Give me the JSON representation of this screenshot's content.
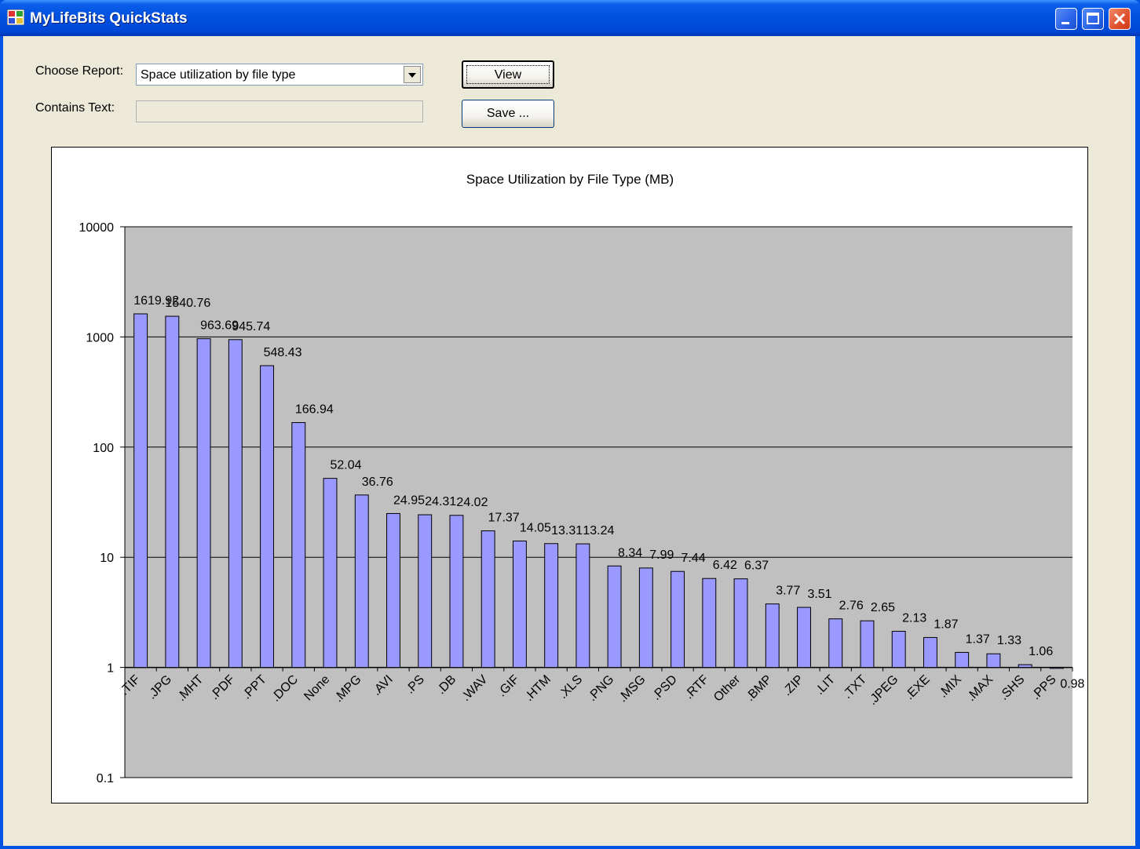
{
  "window": {
    "title": "MyLifeBits QuickStats"
  },
  "form": {
    "choose_report_label": "Choose Report:",
    "report_value": "Space utilization by file type",
    "contains_text_label": "Contains Text:",
    "contains_text_value": "",
    "view_label": "View",
    "save_label": "Save ..."
  },
  "colors": {
    "bar": "#9999ff",
    "plot_bg": "#c0c0c0",
    "titlebar": "#0050e0"
  },
  "chart_data": {
    "type": "bar",
    "title": "Space Utilization by File Type (MB)",
    "xlabel": "",
    "ylabel": "",
    "yscale": "log",
    "ylim": [
      0.1,
      10000
    ],
    "yticks": [
      "0.1",
      "1",
      "10",
      "100",
      "1000",
      "10000"
    ],
    "grid": true,
    "categories": [
      ".TIF",
      ".JPG",
      ".MHT",
      ".PDF",
      ".PPT",
      ".DOC",
      "None",
      ".MPG",
      ".AVI",
      ".PS",
      ".DB",
      ".WAV",
      ".GIF",
      ".HTM",
      ".XLS",
      ".PNG",
      ".MSG",
      ".PSD",
      ".RTF",
      "Other",
      ".BMP",
      ".ZIP",
      ".LIT",
      ".TXT",
      ".JPEG",
      ".EXE",
      ".MIX",
      ".MAX",
      ".SHS",
      ".PPS"
    ],
    "values": [
      1619.92,
      1540.76,
      963.69,
      945.74,
      548.43,
      166.94,
      52.04,
      36.76,
      24.95,
      24.31,
      24.02,
      17.37,
      14.05,
      13.31,
      13.24,
      8.34,
      7.99,
      7.44,
      6.42,
      6.37,
      3.77,
      3.51,
      2.76,
      2.65,
      2.13,
      1.87,
      1.37,
      1.33,
      1.06,
      0.98
    ],
    "data_labels": [
      "1619.92",
      "1540.76",
      "963.69",
      "945.74",
      "548.43",
      "166.94",
      "52.04",
      "36.76",
      "24.95",
      "24.31",
      "24.02",
      "17.37",
      "14.05",
      "13.31",
      "13.24",
      "8.34",
      "7.99",
      "7.44",
      "6.42",
      "6.37",
      "3.77",
      "3.51",
      "2.76",
      "2.65",
      "2.13",
      "1.87",
      "1.37",
      "1.33",
      "1.06",
      "0.98"
    ]
  }
}
